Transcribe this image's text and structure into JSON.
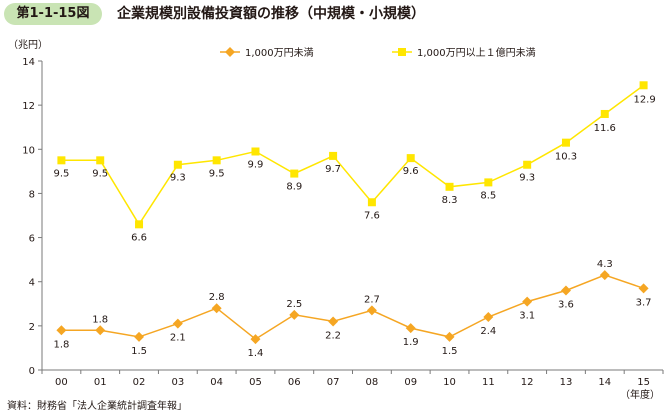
{
  "figure": {
    "number": "第1-1-15図",
    "title": "企業規模別設備投資額の推移（中規模・小規模）",
    "source": "資料：財務省「法人企業統計調査年報」",
    "badge_color": "#c9e4b4"
  },
  "chart_data": {
    "type": "line",
    "title": "企業規模別設備投資額の推移（中規模・小規模）",
    "ylabel": "（兆円）",
    "xlabel": "（年度）",
    "ylim": [
      0,
      14
    ],
    "yticks": [
      0,
      2,
      4,
      6,
      8,
      10,
      12,
      14
    ],
    "categories": [
      "00",
      "01",
      "02",
      "03",
      "04",
      "05",
      "06",
      "07",
      "08",
      "09",
      "10",
      "11",
      "12",
      "13",
      "14",
      "15"
    ],
    "legend_position": "top",
    "grid": false,
    "series": [
      {
        "name": "1,000万円未満",
        "color": "#f5a623",
        "marker": "diamond",
        "values": [
          1.8,
          1.8,
          1.5,
          2.1,
          2.8,
          1.4,
          2.5,
          2.2,
          2.7,
          1.9,
          1.5,
          2.4,
          3.1,
          3.6,
          4.3,
          3.7
        ]
      },
      {
        "name": "1,000万円以上１億円未満",
        "color": "#ffe600",
        "marker": "square",
        "values": [
          9.5,
          9.5,
          6.6,
          9.3,
          9.5,
          9.9,
          8.9,
          9.7,
          7.6,
          9.6,
          8.3,
          8.5,
          9.3,
          10.3,
          11.6,
          12.9
        ]
      }
    ]
  }
}
